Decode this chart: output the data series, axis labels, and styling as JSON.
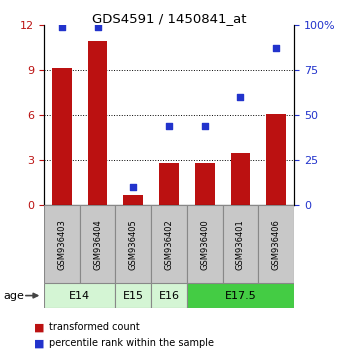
{
  "title": "GDS4591 / 1450841_at",
  "samples": [
    "GSM936403",
    "GSM936404",
    "GSM936405",
    "GSM936402",
    "GSM936400",
    "GSM936401",
    "GSM936406"
  ],
  "transformed_count": [
    9.1,
    10.9,
    0.7,
    2.8,
    2.8,
    3.5,
    6.1
  ],
  "percentile_rank": [
    99,
    99,
    10,
    44,
    44,
    60,
    87
  ],
  "bar_color": "#bb1111",
  "dot_color": "#2233cc",
  "age_groups": [
    {
      "label": "E14",
      "start": 0,
      "end": 2,
      "color": "#d4f5d4"
    },
    {
      "label": "E15",
      "start": 2,
      "end": 3,
      "color": "#d4f5d4"
    },
    {
      "label": "E16",
      "start": 3,
      "end": 4,
      "color": "#d4f5d4"
    },
    {
      "label": "E17.5",
      "start": 4,
      "end": 7,
      "color": "#44cc44"
    }
  ],
  "ylim_left": [
    0,
    12
  ],
  "ylim_right": [
    0,
    100
  ],
  "yticks_left": [
    0,
    3,
    6,
    9,
    12
  ],
  "yticks_right": [
    0,
    25,
    50,
    75,
    100
  ],
  "grid_yticks": [
    3,
    6,
    9
  ],
  "box_color": "#c8c8c8",
  "box_edge_color": "#888888"
}
